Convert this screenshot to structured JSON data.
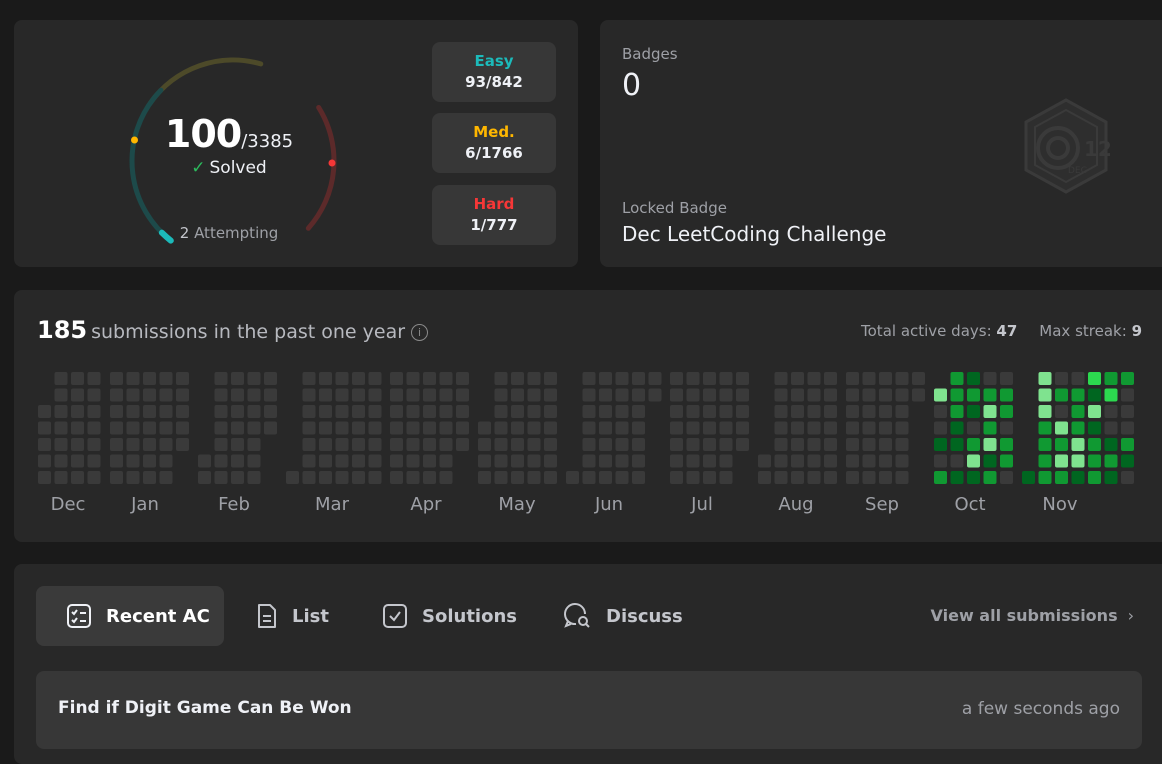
{
  "solved": {
    "count": "100",
    "total": "/3385",
    "label": "Solved",
    "attempting_count": "2",
    "attempting_label": "Attempting"
  },
  "difficulty": [
    {
      "name": "Easy",
      "value": "93/842",
      "color": "#1cbaba"
    },
    {
      "name": "Med.",
      "value": "6/1766",
      "color": "#ffb700"
    },
    {
      "name": "Hard",
      "value": "1/777",
      "color": "#f63737"
    }
  ],
  "badges": {
    "label": "Badges",
    "count": "0",
    "locked_label": "Locked Badge",
    "locked_name": "Dec LeetCoding Challenge",
    "icon_day": "12",
    "icon_month": "DEC"
  },
  "submissions": {
    "count": "185",
    "label": "submissions in the past one year",
    "active_days_label": "Total active days:",
    "active_days": "47",
    "max_streak_label": "Max streak:",
    "max_streak": "9",
    "months": [
      "Dec",
      "Jan",
      "Feb",
      "Mar",
      "Apr",
      "May",
      "Jun",
      "Jul",
      "Aug",
      "Sep",
      "Oct",
      "Nov"
    ],
    "colors": {
      "empty": "#3a3a3a",
      "level1": "#006620",
      "level2": "#109932",
      "level3": "#2cd94f",
      "level4": "#7fe38f"
    }
  },
  "tabs": [
    {
      "label": "Recent AC",
      "icon": "recent-ac-icon",
      "active": true
    },
    {
      "label": "List",
      "icon": "list-icon",
      "active": false
    },
    {
      "label": "Solutions",
      "icon": "solutions-icon",
      "active": false
    },
    {
      "label": "Discuss",
      "icon": "discuss-icon",
      "active": false
    }
  ],
  "view_all": "View all submissions",
  "recent": [
    {
      "title": "Find if Digit Game Can Be Won",
      "time": "a few seconds ago"
    }
  ]
}
